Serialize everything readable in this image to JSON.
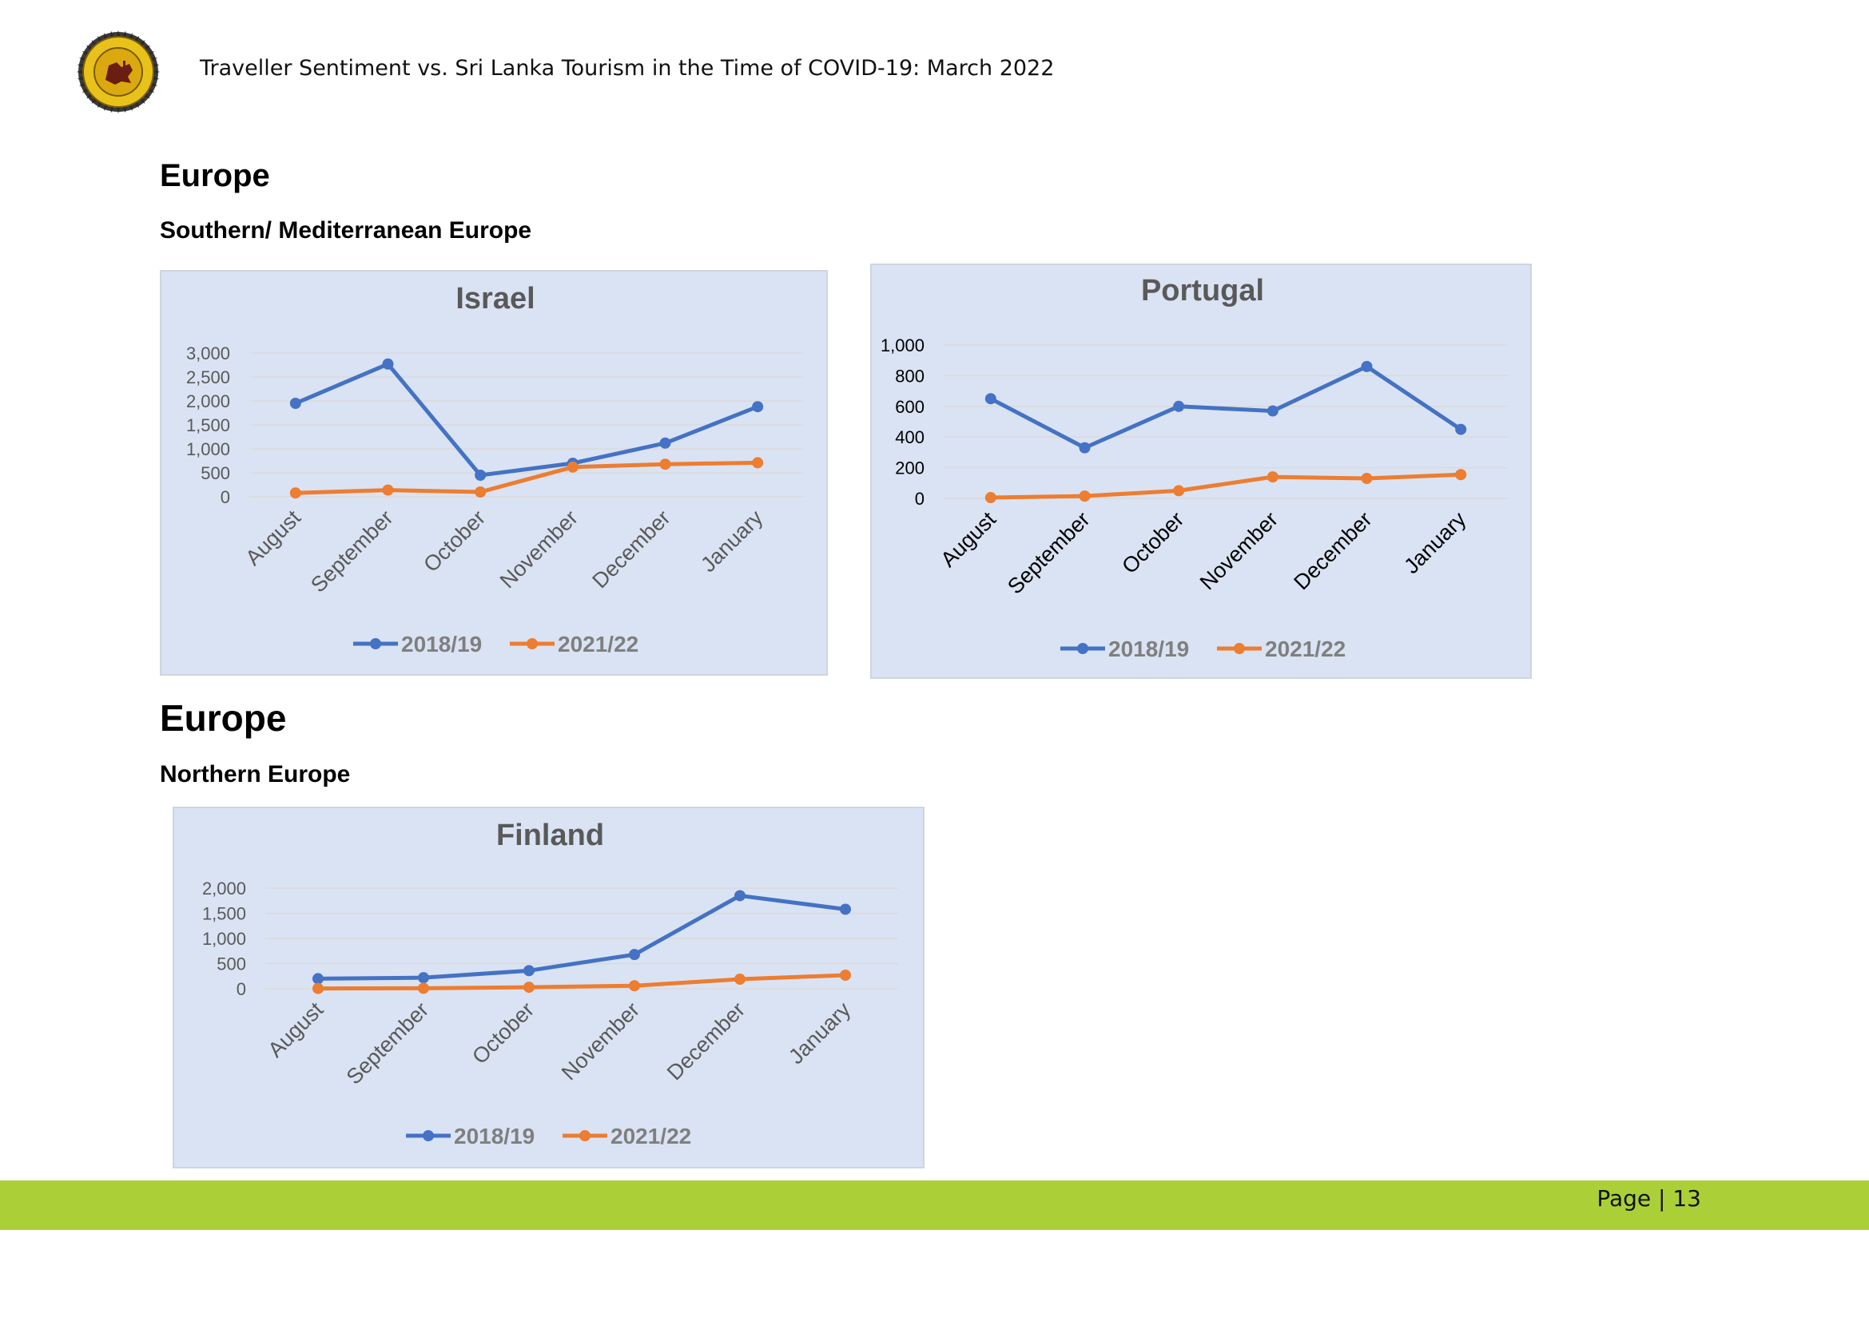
{
  "header": {
    "title": "Traveller Sentiment vs. Sri Lanka Tourism in the Time of COVID-19: March 2022"
  },
  "sections": [
    {
      "heading": "Europe",
      "subheading": "Southern/ Mediterranean Europe"
    },
    {
      "heading": "Europe",
      "subheading": "Northern Europe"
    }
  ],
  "footer": {
    "page_label": "Page | 13",
    "bar_color": "#abd037"
  },
  "colors": {
    "series_2018": "#4472c4",
    "series_2021": "#ed7d31",
    "chart_background": "#dae3f3"
  },
  "chart_data": [
    {
      "type": "line",
      "title": "Israel",
      "categories": [
        "August",
        "September",
        "October",
        "November",
        "December",
        "January"
      ],
      "series": [
        {
          "name": "2018/19",
          "values": [
            1950,
            2770,
            450,
            700,
            1120,
            1880
          ]
        },
        {
          "name": "2021/22",
          "values": [
            80,
            140,
            100,
            620,
            680,
            710
          ]
        }
      ],
      "yticks": [
        "0",
        "500",
        "1,000",
        "1,500",
        "2,000",
        "2,500",
        "3,000"
      ],
      "ylim": [
        0,
        3000
      ],
      "grid": true,
      "legend": "bottom"
    },
    {
      "type": "line",
      "title": "Portugal",
      "categories": [
        "August",
        "September",
        "October",
        "November",
        "December",
        "January"
      ],
      "series": [
        {
          "name": "2018/19",
          "values": [
            650,
            330,
            600,
            570,
            860,
            450
          ]
        },
        {
          "name": "2021/22",
          "values": [
            5,
            15,
            50,
            140,
            130,
            155
          ]
        }
      ],
      "yticks": [
        "0",
        "200",
        "400",
        "600",
        "800",
        "1,000"
      ],
      "ylim": [
        0,
        1000
      ],
      "grid": true,
      "legend": "bottom"
    },
    {
      "type": "line",
      "title": "Finland",
      "categories": [
        "August",
        "September",
        "October",
        "November",
        "December",
        "January"
      ],
      "series": [
        {
          "name": "2018/19",
          "values": [
            200,
            220,
            360,
            680,
            1850,
            1580
          ]
        },
        {
          "name": "2021/22",
          "values": [
            5,
            10,
            30,
            60,
            190,
            270
          ]
        }
      ],
      "yticks": [
        "0",
        "500",
        "1,000",
        "1,500",
        "2,000"
      ],
      "ylim": [
        0,
        2000
      ],
      "grid": true,
      "legend": "bottom"
    }
  ]
}
